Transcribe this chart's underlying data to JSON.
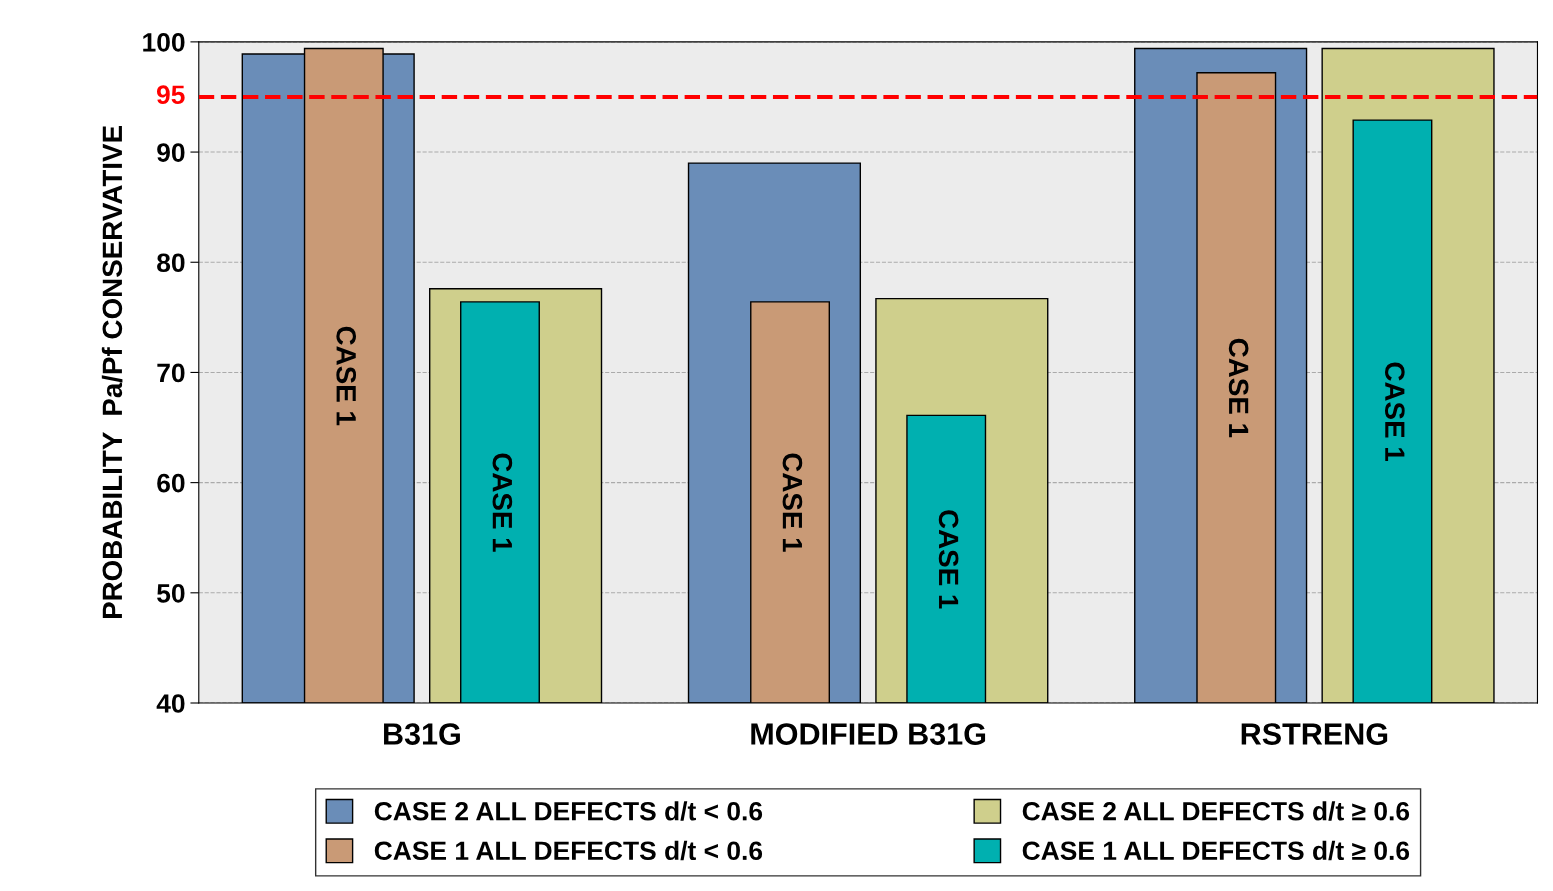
{
  "chart_data": {
    "type": "bar",
    "ylabel": "PROBABILITY  Pa/Pf CONSERVATIVE",
    "categories": [
      "B31G",
      "MODIFIED B31G",
      "RSTRENG"
    ],
    "series": [
      {
        "name": "CASE 2 ALL DEFECTS d/t < 0.6",
        "color": "#6a8db8",
        "values": [
          98.9,
          89.0,
          99.4
        ]
      },
      {
        "name": "CASE 1 ALL DEFECTS d/t < 0.6",
        "color": "#c99a76",
        "values": [
          99.4,
          76.4,
          97.2
        ],
        "value_labels": [
          "CASE 1",
          "CASE 1",
          "CASE 1"
        ]
      },
      {
        "name": "CASE 2 ALL DEFECTS d/t ≥ 0.6",
        "color": "#cfcf8c",
        "values": [
          77.6,
          76.7,
          99.4
        ]
      },
      {
        "name": "CASE 1 ALL DEFECTS d/t ≥ 0.6",
        "color": "#00b0b0",
        "values": [
          76.4,
          66.1,
          92.9
        ],
        "value_labels": [
          "CASE 1",
          "CASE 1",
          "CASE 1"
        ]
      }
    ],
    "ylim": [
      40,
      100
    ],
    "yticks": [
      40,
      50,
      60,
      70,
      80,
      90,
      100
    ],
    "grid": "y",
    "legend": "bottom",
    "ref_lines": [
      {
        "axis": "y",
        "value": 95,
        "label": "95",
        "color": "#ff0000",
        "line_style": "dashed"
      }
    ]
  }
}
